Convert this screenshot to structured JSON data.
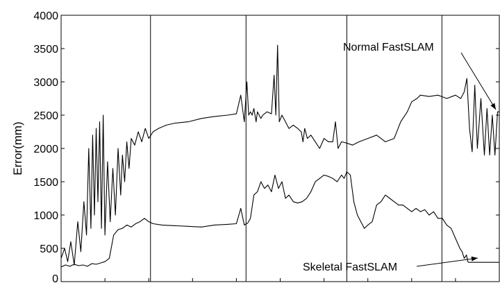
{
  "chart_data": {
    "type": "line",
    "title": "",
    "xlabel": "",
    "ylabel": "Error(mm)",
    "ylim": [
      0,
      4000
    ],
    "xlim": [
      0,
      1000
    ],
    "yticks": [
      "0",
      "500",
      "1000",
      "1500",
      "2000",
      "2500",
      "3000",
      "3500",
      "4000"
    ],
    "grid": false,
    "vertical_markers": [
      204,
      422,
      652,
      869
    ],
    "series": [
      {
        "name": "Normal FastSLAM",
        "x": [
          0,
          8,
          15,
          22,
          30,
          38,
          45,
          52,
          58,
          63,
          68,
          72,
          76,
          80,
          84,
          88,
          92,
          96,
          100,
          106,
          112,
          118,
          124,
          130,
          136,
          140,
          145,
          150,
          155,
          160,
          168,
          176,
          184,
          192,
          200,
          210,
          222,
          240,
          260,
          290,
          320,
          350,
          380,
          400,
          410,
          418,
          424,
          428,
          432,
          436,
          440,
          445,
          448,
          452,
          456,
          460,
          470,
          480,
          486,
          490,
          494,
          498,
          504,
          512,
          520,
          530,
          540,
          548,
          552,
          556,
          562,
          570,
          580,
          590,
          600,
          610,
          620,
          626,
          632,
          640,
          652,
          665,
          680,
          700,
          720,
          740,
          760,
          775,
          790,
          800,
          812,
          820,
          840,
          860,
          880,
          900,
          912,
          920,
          926,
          932,
          938,
          944,
          950,
          958,
          966,
          972,
          978,
          984,
          990,
          996,
          1000
        ],
        "values": [
          350,
          500,
          300,
          600,
          250,
          900,
          450,
          1200,
          700,
          2000,
          800,
          2200,
          1000,
          2300,
          1200,
          2400,
          800,
          2500,
          700,
          1800,
          900,
          1700,
          1000,
          2000,
          1300,
          1900,
          1500,
          2100,
          1700,
          2150,
          2050,
          2250,
          2100,
          2300,
          2150,
          2250,
          2300,
          2350,
          2380,
          2400,
          2450,
          2480,
          2500,
          2520,
          2800,
          2400,
          3000,
          2500,
          2550,
          2500,
          2600,
          2400,
          2550,
          2500,
          2450,
          2500,
          2550,
          2520,
          3100,
          2500,
          3550,
          2400,
          2500,
          2400,
          2300,
          2350,
          2300,
          2250,
          2100,
          2300,
          2150,
          2200,
          2100,
          2000,
          2150,
          2100,
          2100,
          2400,
          2000,
          2100,
          2080,
          2050,
          2100,
          2150,
          2200,
          2100,
          2150,
          2400,
          2550,
          2700,
          2750,
          2800,
          2780,
          2800,
          2750,
          2800,
          2750,
          2850,
          3050,
          2300,
          1950,
          2950,
          2000,
          2750,
          1900,
          2600,
          1900,
          2500,
          1900,
          2550,
          2550
        ]
      },
      {
        "name": "Skeletal FastSLAM",
        "x": [
          0,
          10,
          20,
          30,
          40,
          50,
          60,
          70,
          80,
          90,
          100,
          110,
          120,
          130,
          140,
          150,
          160,
          170,
          180,
          190,
          200,
          210,
          230,
          260,
          290,
          320,
          350,
          380,
          400,
          410,
          418,
          426,
          432,
          440,
          448,
          456,
          464,
          472,
          480,
          488,
          496,
          504,
          512,
          520,
          530,
          540,
          550,
          560,
          570,
          580,
          590,
          600,
          610,
          620,
          630,
          640,
          646,
          652,
          660,
          668,
          676,
          684,
          692,
          700,
          710,
          720,
          730,
          740,
          750,
          760,
          770,
          780,
          790,
          800,
          810,
          820,
          830,
          840,
          850,
          860,
          870,
          880,
          890,
          900,
          910,
          915,
          920,
          925,
          928,
          930,
          935,
          1000
        ],
        "values": [
          220,
          250,
          230,
          260,
          240,
          250,
          230,
          270,
          260,
          280,
          300,
          350,
          700,
          780,
          800,
          850,
          820,
          870,
          900,
          950,
          900,
          870,
          850,
          840,
          830,
          820,
          850,
          860,
          870,
          1100,
          850,
          880,
          950,
          1300,
          1350,
          1500,
          1400,
          1450,
          1350,
          1600,
          1400,
          1500,
          1250,
          1300,
          1200,
          1180,
          1200,
          1250,
          1350,
          1500,
          1550,
          1600,
          1580,
          1550,
          1500,
          1600,
          1550,
          1650,
          1600,
          1200,
          1000,
          900,
          800,
          850,
          900,
          1150,
          1200,
          1300,
          1250,
          1200,
          1150,
          1150,
          1100,
          1050,
          1100,
          1050,
          1080,
          1000,
          1050,
          950,
          950,
          850,
          800,
          650,
          500,
          450,
          350,
          400,
          300,
          290,
          290,
          290
        ]
      }
    ],
    "annotations": [
      {
        "text": "Normal FastSLAM",
        "target_series": "Normal FastSLAM"
      },
      {
        "text": "Skeletal FastSLAM",
        "target_series": "Skeletal FastSLAM"
      }
    ]
  }
}
